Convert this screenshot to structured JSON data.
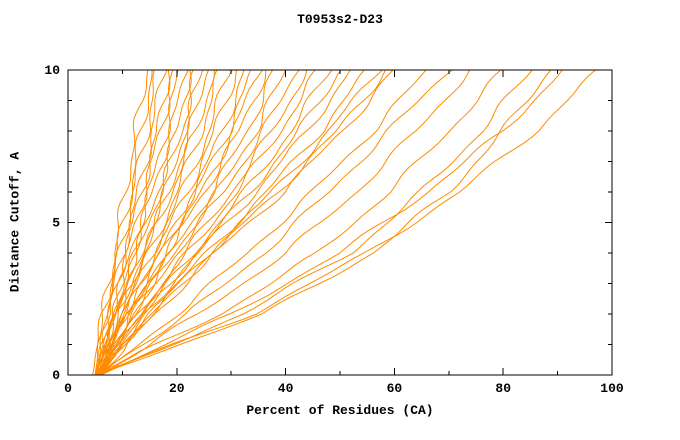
{
  "chart_data": {
    "type": "line",
    "title": "T0953s2-D23",
    "xlabel": "Percent of Residues (CA)",
    "ylabel": "Distance Cutoff, A",
    "xlim": [
      0,
      100
    ],
    "ylim": [
      0,
      10
    ],
    "x_major_ticks": [
      0,
      20,
      40,
      60,
      80,
      100
    ],
    "x_minor_ticks": [
      10,
      30,
      50,
      70,
      90
    ],
    "y_major_ticks": [
      0,
      5,
      10
    ],
    "y_minor_ticks": [
      1,
      2,
      3,
      4,
      6,
      7,
      8,
      9
    ],
    "grid": false,
    "legend": "none",
    "series_color": "#ff8c00",
    "axis_color": "#000000",
    "y_anchors": [
      0,
      2,
      4,
      6,
      8,
      10
    ],
    "curves": [
      [
        5.0,
        6.5,
        8.5,
        10.5,
        12.5,
        14.5
      ],
      [
        4.5,
        6.5,
        9.0,
        11.5,
        13.5,
        15.5
      ],
      [
        5.0,
        7.0,
        9.5,
        12.0,
        14.5,
        16.5
      ],
      [
        5.5,
        7.5,
        10.0,
        13.0,
        15.5,
        17.5
      ],
      [
        5.0,
        7.5,
        10.5,
        13.5,
        16.5,
        18.5
      ],
      [
        6.0,
        8.5,
        11.0,
        14.0,
        17.0,
        19.5
      ],
      [
        5.0,
        8.0,
        11.5,
        15.0,
        18.0,
        20.5
      ],
      [
        5.5,
        8.5,
        12.0,
        15.5,
        19.0,
        21.5
      ],
      [
        6.0,
        9.0,
        12.5,
        16.5,
        20.0,
        22.5
      ],
      [
        5.0,
        8.5,
        12.5,
        17.0,
        21.0,
        23.5
      ],
      [
        6.0,
        9.5,
        13.5,
        18.0,
        21.5,
        24.5
      ],
      [
        5.5,
        9.5,
        14.0,
        18.5,
        22.5,
        25.5
      ],
      [
        5.0,
        9.0,
        14.0,
        19.0,
        23.5,
        27.0
      ],
      [
        6.0,
        10.0,
        15.0,
        20.0,
        24.5,
        28.0
      ],
      [
        5.0,
        10.0,
        15.5,
        21.0,
        26.0,
        29.5
      ],
      [
        6.0,
        10.5,
        16.0,
        22.0,
        27.0,
        31.0
      ],
      [
        5.5,
        11.0,
        17.0,
        23.0,
        28.5,
        32.5
      ],
      [
        5.0,
        10.5,
        17.0,
        23.5,
        29.5,
        34.0
      ],
      [
        6.0,
        11.5,
        18.0,
        24.5,
        30.5,
        35.0
      ],
      [
        5.0,
        11.0,
        18.0,
        25.0,
        31.5,
        36.5
      ],
      [
        6.0,
        12.0,
        19.0,
        26.5,
        33.0,
        38.0
      ],
      [
        5.5,
        12.0,
        19.5,
        27.5,
        34.5,
        40.0
      ],
      [
        5.0,
        12.0,
        20.0,
        28.5,
        36.0,
        42.0
      ],
      [
        6.0,
        13.0,
        21.5,
        30.0,
        37.5,
        44.0
      ],
      [
        5.0,
        13.0,
        22.0,
        31.0,
        39.0,
        46.0
      ],
      [
        6.0,
        14.0,
        23.0,
        32.5,
        41.0,
        48.0
      ],
      [
        5.5,
        14.0,
        23.5,
        33.5,
        42.5,
        50.0
      ],
      [
        5.0,
        14.0,
        24.0,
        34.5,
        44.0,
        52.0
      ],
      [
        6.0,
        15.0,
        25.5,
        36.5,
        46.5,
        55.0
      ],
      [
        5.0,
        15.0,
        26.0,
        37.5,
        48.0,
        57.0
      ],
      [
        6.0,
        15.5,
        26.5,
        38.5,
        49.5,
        58.5
      ],
      [
        5.0,
        16.0,
        27.0,
        39.5,
        50.5,
        60.0
      ],
      [
        6.0,
        20.0,
        33.0,
        45.0,
        56.0,
        66.0
      ],
      [
        5.0,
        22.0,
        36.0,
        48.0,
        59.0,
        70.0
      ],
      [
        6.0,
        24.0,
        40.0,
        53.0,
        64.0,
        74.0
      ],
      [
        5.0,
        28.0,
        46.0,
        59.0,
        70.0,
        80.0
      ],
      [
        6.0,
        32.0,
        52.0,
        65.0,
        76.0,
        85.0
      ],
      [
        5.0,
        36.0,
        56.0,
        70.0,
        80.0,
        88.5
      ],
      [
        6.0,
        30.0,
        50.0,
        66.0,
        80.0,
        91.0
      ],
      [
        5.0,
        34.0,
        55.0,
        72.0,
        86.0,
        97.5
      ]
    ]
  }
}
